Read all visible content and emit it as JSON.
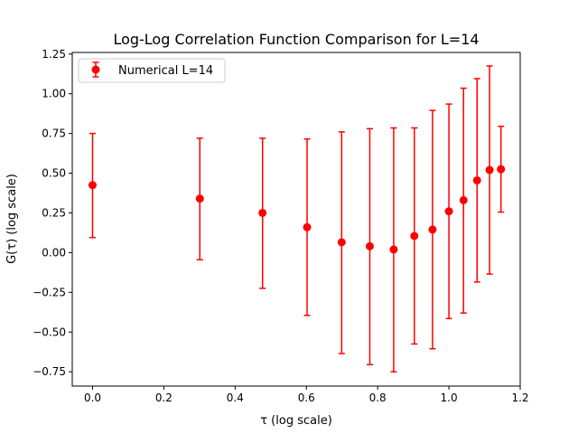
{
  "chart_data": {
    "type": "scatter",
    "title": "Log-Log Correlation Function Comparison for L=14",
    "xlabel": "τ (log scale)",
    "ylabel": "G(τ) (log scale)",
    "xlim": [
      -0.057,
      1.2
    ],
    "ylim": [
      -0.84,
      1.26
    ],
    "xticks": [
      0.0,
      0.2,
      0.4,
      0.6,
      0.8,
      1.0,
      1.2
    ],
    "xtick_labels": [
      "0.0",
      "0.2",
      "0.4",
      "0.6",
      "0.8",
      "1.0",
      "1.2"
    ],
    "yticks": [
      -0.75,
      -0.5,
      -0.25,
      0.0,
      0.25,
      0.5,
      0.75,
      1.0,
      1.25
    ],
    "ytick_labels": [
      "−0.75",
      "−0.50",
      "−0.25",
      "0.00",
      "0.25",
      "0.50",
      "0.75",
      "1.00",
      "1.25"
    ],
    "grid": false,
    "legend_position": "top-left",
    "series": [
      {
        "name": "Numerical L=14",
        "color": "#ff0000",
        "x": [
          0.0,
          0.301,
          0.477,
          0.602,
          0.699,
          0.778,
          0.845,
          0.903,
          0.954,
          1.0,
          1.041,
          1.079,
          1.114,
          1.146
        ],
        "y": [
          0.425,
          0.34,
          0.25,
          0.16,
          0.065,
          0.04,
          0.02,
          0.105,
          0.145,
          0.26,
          0.33,
          0.455,
          0.52,
          0.525
        ],
        "y_low": [
          0.095,
          -0.045,
          -0.225,
          -0.395,
          -0.635,
          -0.705,
          -0.75,
          -0.575,
          -0.605,
          -0.415,
          -0.38,
          -0.185,
          -0.135,
          0.255
        ],
        "y_high": [
          0.75,
          0.72,
          0.72,
          0.715,
          0.76,
          0.78,
          0.785,
          0.785,
          0.895,
          0.935,
          1.035,
          1.095,
          1.175,
          0.795
        ]
      }
    ]
  }
}
